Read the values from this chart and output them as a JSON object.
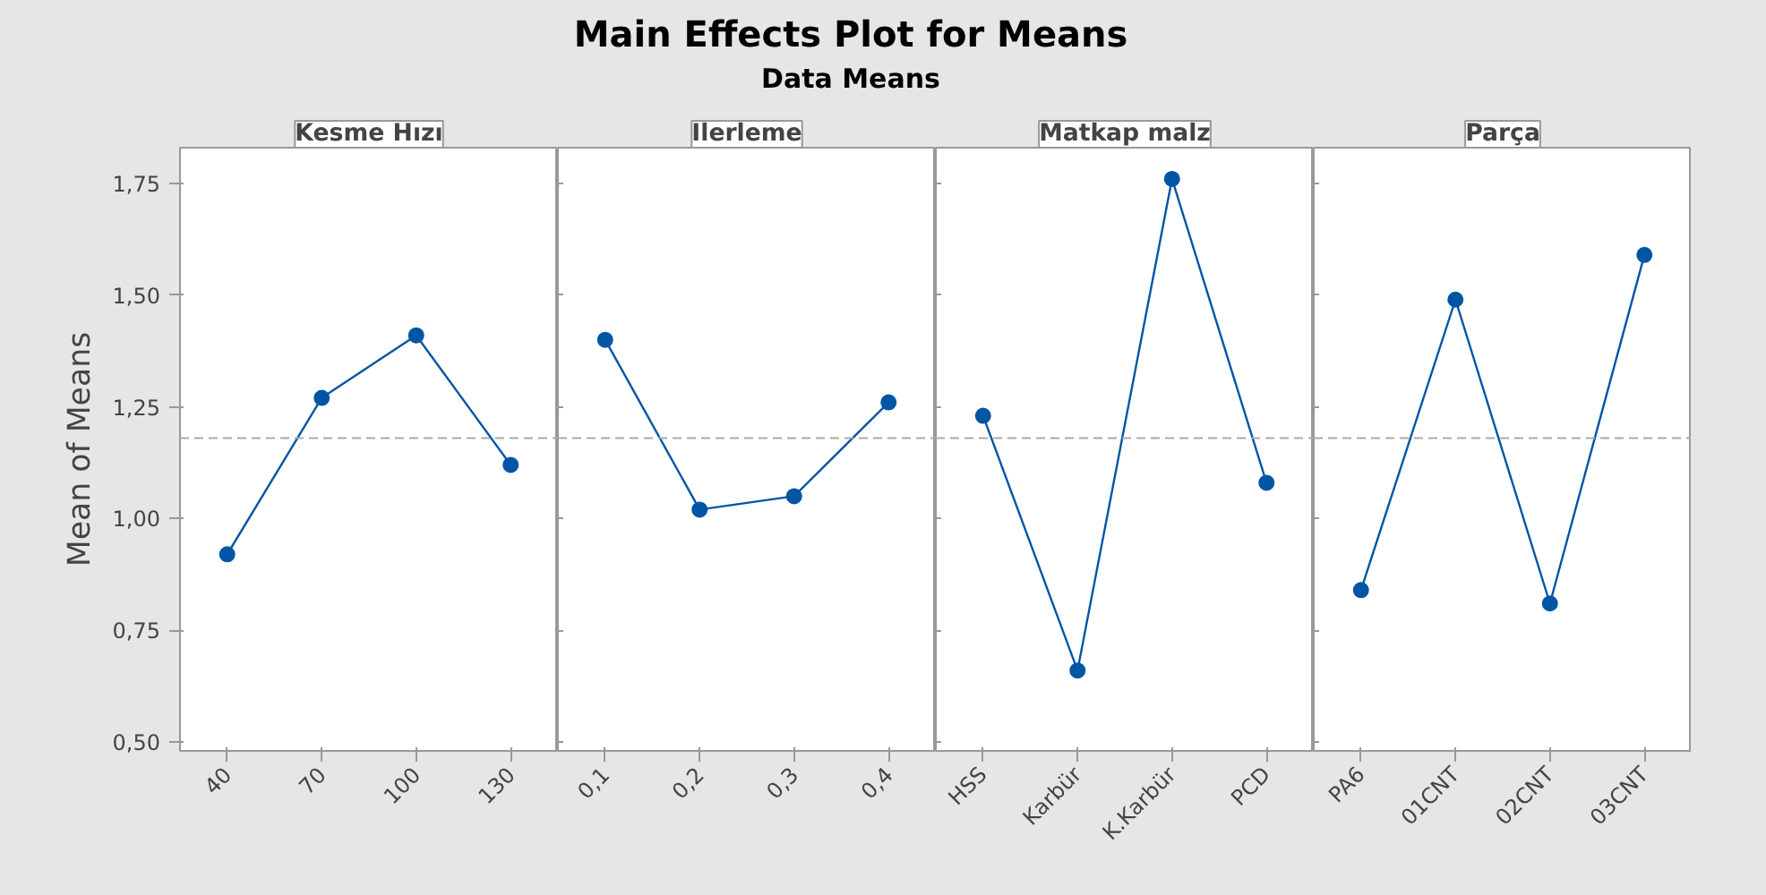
{
  "chart_data": [
    {
      "type": "other",
      "title": "Main Effects Plot for Means",
      "subtitle": "Data Means"
    },
    {
      "type": "line",
      "xlabel": "Kesme Hızı",
      "ylabel": "Mean of Means",
      "categories": [
        "40",
        "70",
        "100",
        "130"
      ],
      "values": [
        0.92,
        1.27,
        1.41,
        1.12
      ],
      "color": "#0055a5",
      "marker": "circle",
      "line_style": "solid",
      "grid": false,
      "ylim": [
        0.48,
        1.83
      ],
      "yticks": [
        {
          "value": 0.5,
          "label": "0,50"
        },
        {
          "value": 0.75,
          "label": "0,75"
        },
        {
          "value": 1.0,
          "label": "1,00"
        },
        {
          "value": 1.25,
          "label": "1,25"
        },
        {
          "value": 1.5,
          "label": "1,50"
        },
        {
          "value": 1.75,
          "label": "1,75"
        }
      ],
      "ref_lines": [
        {
          "axis": "y",
          "value": 1.18,
          "color": "#aaaaaa",
          "line_style": "dashed"
        }
      ]
    },
    {
      "type": "line",
      "xlabel": "Ilerleme",
      "categories": [
        "0,1",
        "0,2",
        "0,3",
        "0,4"
      ],
      "values": [
        1.4,
        1.02,
        1.05,
        1.26
      ],
      "color": "#0055a5",
      "marker": "circle",
      "line_style": "solid",
      "grid": false,
      "tick_labels": "x",
      "ylim": [
        0.48,
        1.83
      ],
      "yticks": [
        {
          "value": 0.5,
          "label": null
        },
        {
          "value": 0.75,
          "label": null
        },
        {
          "value": 1.0,
          "label": null
        },
        {
          "value": 1.25,
          "label": null
        },
        {
          "value": 1.5,
          "label": null
        },
        {
          "value": 1.75,
          "label": null
        }
      ],
      "ref_lines": [
        {
          "axis": "y",
          "value": 1.18,
          "color": "#aaaaaa",
          "line_style": "dashed"
        }
      ]
    },
    {
      "type": "line",
      "xlabel": "Matkap malz",
      "categories": [
        "HSS",
        "Karbür",
        "K.Karbür",
        "PCD"
      ],
      "values": [
        1.23,
        0.66,
        1.76,
        1.08
      ],
      "color": "#0055a5",
      "marker": "circle",
      "line_style": "solid",
      "grid": false,
      "tick_labels": "x",
      "ylim": [
        0.48,
        1.83
      ],
      "yticks": [
        {
          "value": 0.5,
          "label": null
        },
        {
          "value": 0.75,
          "label": null
        },
        {
          "value": 1.0,
          "label": null
        },
        {
          "value": 1.25,
          "label": null
        },
        {
          "value": 1.5,
          "label": null
        },
        {
          "value": 1.75,
          "label": null
        }
      ],
      "ref_lines": [
        {
          "axis": "y",
          "value": 1.18,
          "color": "#aaaaaa",
          "line_style": "dashed"
        }
      ]
    },
    {
      "type": "line",
      "xlabel": "Parça",
      "categories": [
        "PA6",
        "01CNT",
        "02CNT",
        "03CNT"
      ],
      "values": [
        0.84,
        1.49,
        0.81,
        1.59
      ],
      "color": "#0055a5",
      "marker": "circle",
      "line_style": "solid",
      "grid": false,
      "tick_labels": "x",
      "ylim": [
        0.48,
        1.83
      ],
      "yticks": [
        {
          "value": 0.5,
          "label": null
        },
        {
          "value": 0.75,
          "label": null
        },
        {
          "value": 1.0,
          "label": null
        },
        {
          "value": 1.25,
          "label": null
        },
        {
          "value": 1.5,
          "label": null
        },
        {
          "value": 1.75,
          "label": null
        }
      ],
      "ref_lines": [
        {
          "axis": "y",
          "value": 1.18,
          "color": "#aaaaaa",
          "line_style": "dashed"
        }
      ]
    }
  ]
}
